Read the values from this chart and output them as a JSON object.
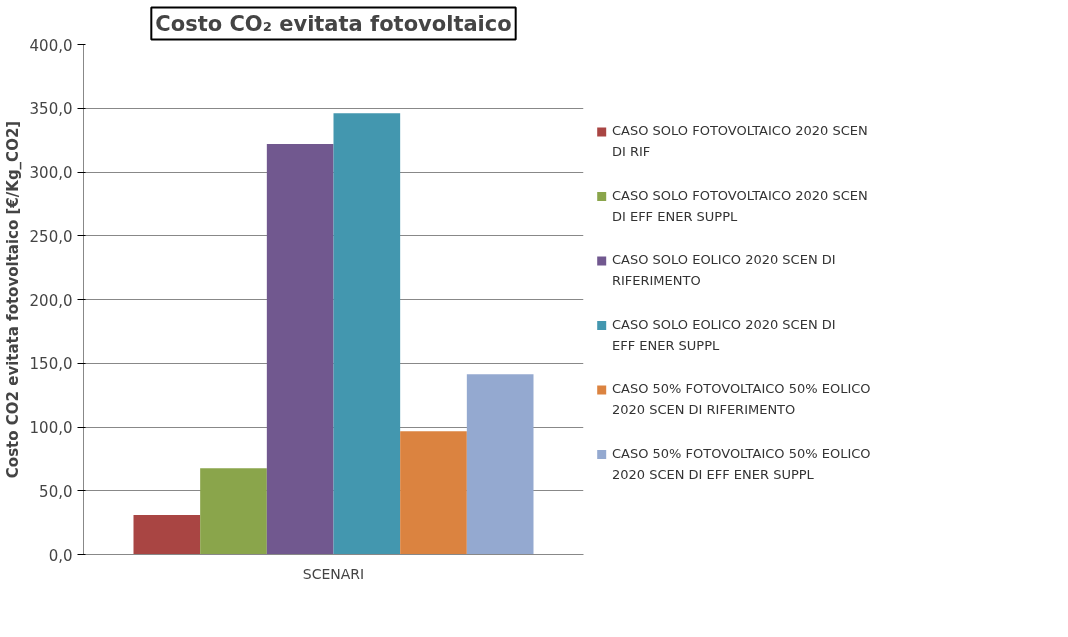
{
  "chart_data": {
    "type": "bar",
    "title": "Costo CO₂ evitata fotovoltaico",
    "ylabel": "Costo CO2 evitata fotovoltaico [€/Kg_CO2]",
    "categories": [
      "SCENARI"
    ],
    "series": [
      {
        "name": "CASO SOLO FOTOVOLTAICO 2020 SCEN DI RIF",
        "color": "#a94543",
        "values": [
          31
        ]
      },
      {
        "name": "CASO SOLO FOTOVOLTAICO 2020 SCEN DI EFF ENER SUPPL",
        "color": "#8aa54b",
        "values": [
          67.6
        ]
      },
      {
        "name": "CASO SOLO EOLICO 2020 SCEN DI RIFERIMENTO",
        "color": "#71588f",
        "values": [
          322
        ]
      },
      {
        "name": "CASO SOLO EOLICO 2020 SCEN DI EFF ENER SUPPL",
        "color": "#4397af",
        "values": [
          346
        ]
      },
      {
        "name": "CASO 50% FOTOVOLTAICO 50% EOLICO 2020 SCEN DI RIFERIMENTO",
        "color": "#db8340",
        "values": [
          96.6
        ]
      },
      {
        "name": "CASO 50% FOTOVOLTAICO 50% EOLICO 2020 SCEN DI EFF ENER SUPPL",
        "color": "#94a9d0",
        "values": [
          141.4
        ]
      }
    ],
    "ylim": [
      0,
      400
    ],
    "yticks": [
      {
        "value": 0,
        "label": "0,0"
      },
      {
        "value": 50,
        "label": "50,0"
      },
      {
        "value": 100,
        "label": "100,0"
      },
      {
        "value": 150,
        "label": "150,0"
      },
      {
        "value": 200,
        "label": "200,0"
      },
      {
        "value": 250,
        "label": "250,0"
      },
      {
        "value": 300,
        "label": "300,0"
      },
      {
        "value": 350,
        "label": "350,0"
      },
      {
        "value": 400,
        "label": "400,0"
      }
    ],
    "grid": "y",
    "legend": "right"
  }
}
